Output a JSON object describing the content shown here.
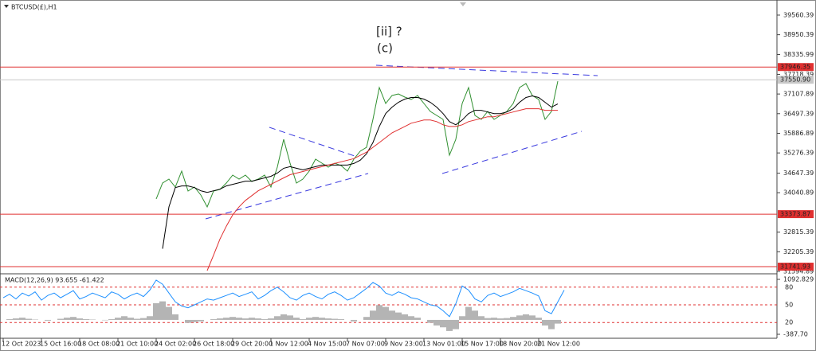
{
  "chart_data": [
    {
      "type": "line",
      "title": "BTCUSD(£),H1",
      "annotations": [
        {
          "text": "[ii] ?",
          "color": "#2e9a2e"
        },
        {
          "text": "(c)",
          "color": "#3a3adf"
        }
      ],
      "categories": [
        "12 Oct 2023",
        null,
        null,
        null,
        null,
        null,
        "15 Oct 16:00",
        null,
        null,
        null,
        null,
        null,
        "18 Oct 08:00",
        null,
        null,
        null,
        null,
        null,
        "21 Oct 10:00",
        null,
        null,
        null,
        null,
        null,
        "24 Oct 02:00",
        null,
        null,
        null,
        null,
        null,
        "26 Oct 18:00",
        null,
        null,
        null,
        null,
        null,
        "29 Oct 20:00",
        null,
        null,
        null,
        null,
        null,
        "1 Nov 12:00",
        null,
        null,
        null,
        null,
        null,
        "4 Nov 15:00",
        null,
        null,
        null,
        null,
        null,
        "7 Nov 07:00",
        null,
        null,
        null,
        null,
        null,
        "9 Nov 23:00",
        null,
        null,
        null,
        null,
        null,
        "13 Nov 01:00",
        null,
        null,
        null,
        null,
        null,
        "15 Nov 17:00",
        null,
        null,
        null,
        null,
        null,
        "18 Nov 20:00",
        null,
        null,
        null,
        null,
        null,
        "21 Nov 12:00",
        null,
        null,
        null,
        null,
        null
      ],
      "series": [
        {
          "color": "#2f8f2f",
          "width": 1,
          "values": [
            null,
            null,
            null,
            null,
            null,
            null,
            null,
            null,
            null,
            null,
            null,
            null,
            null,
            null,
            null,
            null,
            null,
            null,
            null,
            null,
            null,
            null,
            null,
            null,
            33845,
            34340,
            34464,
            34216,
            34711,
            34093,
            34216,
            33969,
            33598,
            34093,
            34142,
            34340,
            34587,
            34464,
            34587,
            34389,
            34464,
            34587,
            34216,
            34835,
            35701,
            34958,
            34340,
            34464,
            34711,
            35082,
            34958,
            34835,
            34958,
            34884,
            34711,
            35082,
            35330,
            35453,
            36319,
            37309,
            36814,
            37062,
            37111,
            37012,
            36938,
            37062,
            36814,
            36566,
            36443,
            36319,
            35206,
            35701,
            36814,
            37309,
            36443,
            36319,
            36566,
            36319,
            36443,
            36566,
            36814,
            37309,
            37433,
            37062,
            36938,
            36319,
            36566,
            37507,
            null,
            null
          ]
        },
        {
          "color": "#000000",
          "width": 1,
          "values": [
            null,
            null,
            null,
            null,
            null,
            null,
            null,
            null,
            null,
            null,
            null,
            null,
            null,
            null,
            null,
            null,
            null,
            null,
            null,
            null,
            null,
            null,
            null,
            null,
            null,
            32300,
            33600,
            34200,
            34250,
            34250,
            34200,
            34100,
            34050,
            34100,
            34150,
            34250,
            34300,
            34350,
            34400,
            34400,
            34450,
            34500,
            34550,
            34650,
            34800,
            34850,
            34800,
            34750,
            34800,
            34850,
            34900,
            34900,
            34900,
            34900,
            34900,
            34950,
            35050,
            35250,
            35600,
            36100,
            36500,
            36700,
            36850,
            36950,
            37000,
            37000,
            36950,
            36850,
            36700,
            36500,
            36250,
            36150,
            36300,
            36500,
            36600,
            36600,
            36550,
            36500,
            36500,
            36550,
            36650,
            36850,
            37000,
            37050,
            37000,
            36850,
            36700,
            36800,
            null,
            null
          ]
        },
        {
          "color": "#e03030",
          "width": 1,
          "values": [
            null,
            null,
            null,
            null,
            null,
            null,
            null,
            null,
            null,
            null,
            null,
            null,
            null,
            null,
            null,
            null,
            null,
            null,
            null,
            null,
            null,
            null,
            null,
            null,
            null,
            null,
            null,
            null,
            null,
            null,
            null,
            null,
            31620,
            32100,
            32600,
            33000,
            33350,
            33600,
            33800,
            33950,
            34100,
            34200,
            34300,
            34400,
            34500,
            34600,
            34650,
            34700,
            34750,
            34800,
            34850,
            34900,
            34950,
            35000,
            35050,
            35100,
            35200,
            35300,
            35450,
            35600,
            35750,
            35900,
            36000,
            36100,
            36200,
            36250,
            36300,
            36300,
            36250,
            36150,
            36100,
            36100,
            36150,
            36250,
            36300,
            36350,
            36400,
            36400,
            36450,
            36500,
            36550,
            36600,
            36650,
            36650,
            36650,
            36600,
            36600,
            36600,
            null,
            null
          ]
        }
      ],
      "levels": [
        {
          "value": 37946.35,
          "color": "#e03030"
        },
        {
          "value": 37550.9,
          "label": "37550.90",
          "color": "#c8c8c8"
        },
        {
          "value": 33373.87,
          "color": "#e03030"
        },
        {
          "value": 31741.93,
          "color": "#e03030"
        }
      ],
      "ylim": [
        31545,
        39906
      ],
      "yticks": [
        39560.39,
        38950.39,
        38335.99,
        37718.39,
        37107.89,
        36497.39,
        35886.89,
        35276.39,
        34647.39,
        34040.89,
        32815.39,
        32205.39,
        31594.89
      ]
    },
    {
      "type": "indicator",
      "title": "MACD(12,26,9) 93.655 -61.422",
      "series": [
        {
          "kind": "histogram",
          "color": "#b4b4b4",
          "values": [
            0,
            20,
            40,
            60,
            30,
            10,
            0,
            -20,
            0,
            30,
            60,
            80,
            40,
            20,
            10,
            0,
            -10,
            20,
            60,
            100,
            60,
            30,
            50,
            100,
            450,
            500,
            350,
            150,
            0,
            -80,
            -60,
            -40,
            0,
            20,
            40,
            60,
            80,
            60,
            40,
            60,
            40,
            20,
            40,
            100,
            150,
            120,
            60,
            20,
            60,
            80,
            60,
            40,
            30,
            20,
            0,
            -40,
            0,
            80,
            250,
            400,
            350,
            250,
            200,
            150,
            100,
            60,
            0,
            -80,
            -150,
            -200,
            -300,
            -250,
            100,
            350,
            250,
            100,
            50,
            60,
            40,
            50,
            80,
            120,
            150,
            120,
            60,
            -150,
            -250,
            -100,
            null,
            null
          ]
        },
        {
          "kind": "line",
          "axis": "y2",
          "color": "#1e90ff",
          "values": [
            62,
            68,
            60,
            70,
            65,
            72,
            58,
            66,
            70,
            62,
            68,
            74,
            60,
            64,
            70,
            66,
            62,
            72,
            68,
            60,
            66,
            70,
            64,
            75,
            92,
            85,
            70,
            55,
            48,
            45,
            50,
            55,
            60,
            58,
            62,
            66,
            70,
            64,
            68,
            72,
            60,
            66,
            74,
            80,
            72,
            62,
            58,
            66,
            70,
            64,
            60,
            68,
            72,
            66,
            58,
            62,
            70,
            78,
            88,
            82,
            70,
            66,
            72,
            68,
            62,
            60,
            55,
            50,
            48,
            40,
            30,
            52,
            82,
            75,
            60,
            55,
            66,
            70,
            64,
            68,
            72,
            78,
            74,
            70,
            65,
            40,
            35,
            55,
            75,
            null
          ]
        }
      ],
      "ylim": [
        -387.7,
        1092.829
      ],
      "yticks": [
        1092.829,
        {
          "value": -387.7,
          "label": "-387.70"
        }
      ],
      "y2lim": [
        0,
        100
      ],
      "y2ticks": [
        80,
        50,
        20
      ]
    }
  ]
}
